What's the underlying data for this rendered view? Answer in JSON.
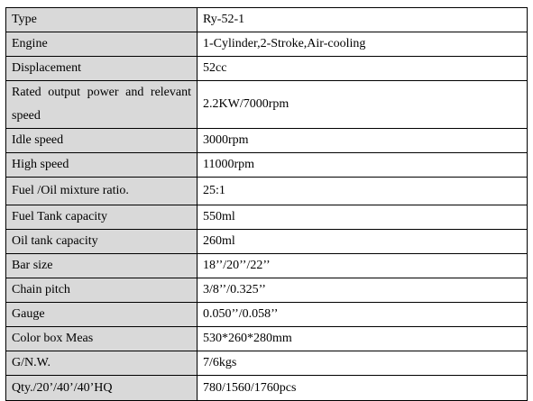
{
  "table": {
    "rows": [
      [
        "Type",
        "Ry-52-1"
      ],
      [
        "Engine",
        "1-Cylinder,2-Stroke,Air-cooling"
      ],
      [
        "Displacement",
        "52cc"
      ],
      [
        "Rated output power and relevant speed",
        "2.2KW/7000rpm"
      ],
      [
        "Idle speed",
        "3000rpm"
      ],
      [
        "High speed",
        "11000rpm"
      ],
      [
        "Fuel /Oil mixture ratio.",
        "25:1"
      ],
      [
        "Fuel Tank capacity",
        "550ml"
      ],
      [
        "Oil tank capacity",
        "260ml"
      ],
      [
        "Bar size",
        "18’’/20’’/22’’"
      ],
      [
        "Chain pitch",
        "3/8’’/0.325’’"
      ],
      [
        "Gauge",
        "0.050’’/0.058’’"
      ],
      [
        "Color box Meas",
        "530*260*280mm"
      ],
      [
        "G/N.W.",
        "7/6kgs"
      ],
      [
        "Qty./20’/40’/40’HQ",
        "780/1560/1760pcs"
      ]
    ]
  }
}
